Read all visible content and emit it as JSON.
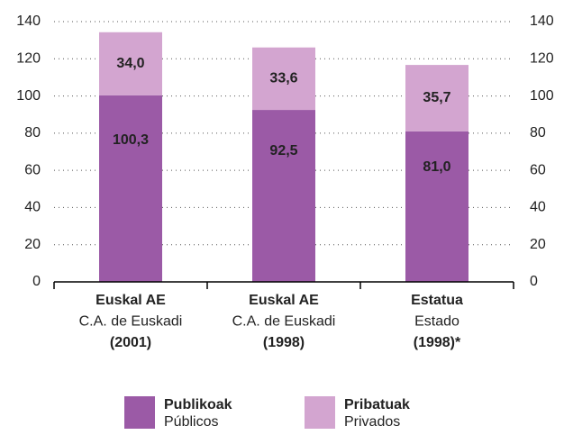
{
  "chart_data": {
    "type": "stacked_bar",
    "categories": [
      [
        "Euskal AE",
        "C.A. de Euskadi",
        "(2001)"
      ],
      [
        "Euskal AE",
        "C.A. de Euskadi",
        "(1998)"
      ],
      [
        "Estatua",
        "Estado",
        "(1998)*"
      ]
    ],
    "series": [
      {
        "name": [
          "Publikoak",
          "Públicos"
        ],
        "color": "#9b5aa6",
        "values": [
          100.3,
          92.5,
          81.0
        ],
        "value_labels": [
          "100,3",
          "92,5",
          "81,0"
        ]
      },
      {
        "name": [
          "Pribatuak",
          "Privados"
        ],
        "color": "#d3a5d0",
        "values": [
          34.0,
          33.6,
          35.7
        ],
        "value_labels": [
          "34,0",
          "33,6",
          "35,7"
        ]
      }
    ],
    "ylim": [
      0,
      140
    ],
    "yticks": [
      0,
      20,
      40,
      60,
      80,
      100,
      120,
      140
    ],
    "y2lim": [
      0,
      140
    ],
    "y2ticks": [
      0,
      20,
      40,
      60,
      80,
      100,
      120,
      140
    ],
    "grid": true
  }
}
